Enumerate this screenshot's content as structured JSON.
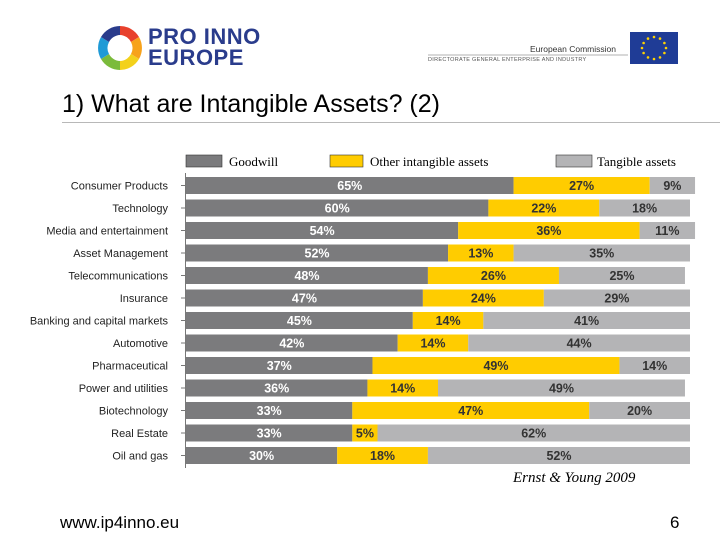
{
  "header": {
    "logo_line1": "PRO INNO",
    "logo_line2": "EUROPE",
    "commission_name": "European Commission",
    "directorate": "DIRECTORATE GENERAL ENTERPRISE AND INDUSTRY"
  },
  "title": "1) What are Intangible Assets? (2)",
  "source": "Ernst & Young 2009",
  "footer": {
    "url": "www.ip4inno.eu",
    "page": "6"
  },
  "chart_data": {
    "type": "bar",
    "orientation": "horizontal",
    "stacked": true,
    "categories": [
      "Consumer Products",
      "Technology",
      "Media and entertainment",
      "Asset Management",
      "Telecommunications",
      "Insurance",
      "Banking and capital markets",
      "Automotive",
      "Pharmaceutical",
      "Power and utilities",
      "Biotechnology",
      "Real Estate",
      "Oil and gas"
    ],
    "series": [
      {
        "name": "Goodwill",
        "color": "#7b7b7d",
        "values": [
          65,
          60,
          54,
          52,
          48,
          47,
          45,
          42,
          37,
          36,
          33,
          33,
          30
        ]
      },
      {
        "name": "Other intangible assets",
        "color": "#ffcc00",
        "values": [
          27,
          22,
          36,
          13,
          26,
          24,
          14,
          14,
          49,
          14,
          47,
          5,
          18
        ]
      },
      {
        "name": "Tangible assets",
        "color": "#b4b4b6",
        "values": [
          9,
          18,
          11,
          35,
          25,
          29,
          41,
          44,
          14,
          49,
          20,
          62,
          52
        ]
      }
    ],
    "unit": "%",
    "xlim": [
      0,
      100
    ],
    "legend_position": "top"
  }
}
